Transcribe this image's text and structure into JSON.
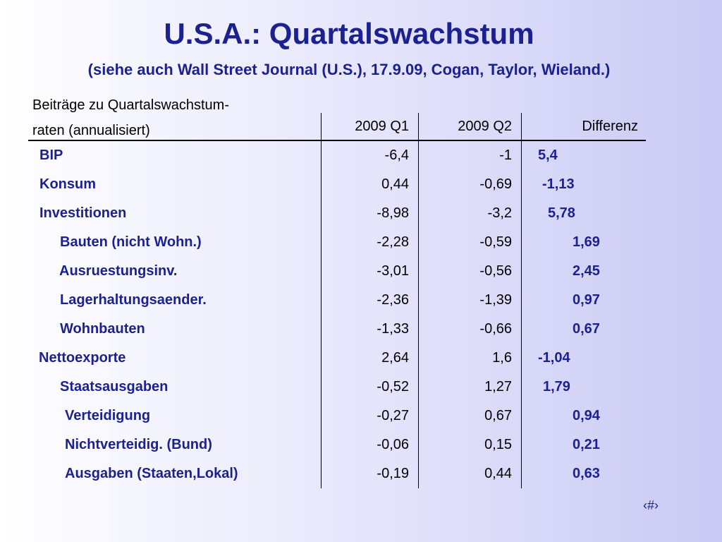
{
  "title": "U.S.A.: Quartalswachstum",
  "subtitle": "(siehe auch Wall Street Journal (U.S.), 17.9.09, Cogan, Taylor, Wieland.)",
  "table": {
    "header_line1": "Beiträge zu Quartalswachstum-",
    "header_line2": "raten (annualisiert)",
    "col_q1": "2009 Q1",
    "col_q2": "2009 Q2",
    "col_diff": "Differenz",
    "rows": [
      {
        "label": "BIP",
        "q1": "-6,4",
        "q2": "-1",
        "diff": "5,4"
      },
      {
        "label": "Konsum",
        "q1": "0,44",
        "q2": "-0,69",
        "diff": "-1,13"
      },
      {
        "label": "Investitionen",
        "q1": "-8,98",
        "q2": "-3,2",
        "diff": "5,78"
      },
      {
        "label": "Bauten (nicht Wohn.)",
        "q1": "-2,28",
        "q2": "-0,59",
        "diff": "1,69"
      },
      {
        "label": "Ausruestungsinv.",
        "q1": "-3,01",
        "q2": "-0,56",
        "diff": "2,45"
      },
      {
        "label": "Lagerhaltungsaender.",
        "q1": "-2,36",
        "q2": "-1,39",
        "diff": "0,97"
      },
      {
        "label": "Wohnbauten",
        "q1": "-1,33",
        "q2": "-0,66",
        "diff": "0,67"
      },
      {
        "label": "Nettoexporte",
        "q1": "2,64",
        "q2": "1,6",
        "diff": "-1,04"
      },
      {
        "label": "Staatsausgaben",
        "q1": "-0,52",
        "q2": "1,27",
        "diff": "1,79"
      },
      {
        "label": "Verteidigung",
        "q1": "-0,27",
        "q2": "0,67",
        "diff": "0,94"
      },
      {
        "label": "Nichtverteidig. (Bund)",
        "q1": "-0,06",
        "q2": "0,15",
        "diff": "0,21"
      },
      {
        "label": "Ausgaben (Staaten,Lokal)",
        "q1": "-0,19",
        "q2": "0,44",
        "diff": "0,63"
      }
    ]
  },
  "page_number": "‹#›"
}
